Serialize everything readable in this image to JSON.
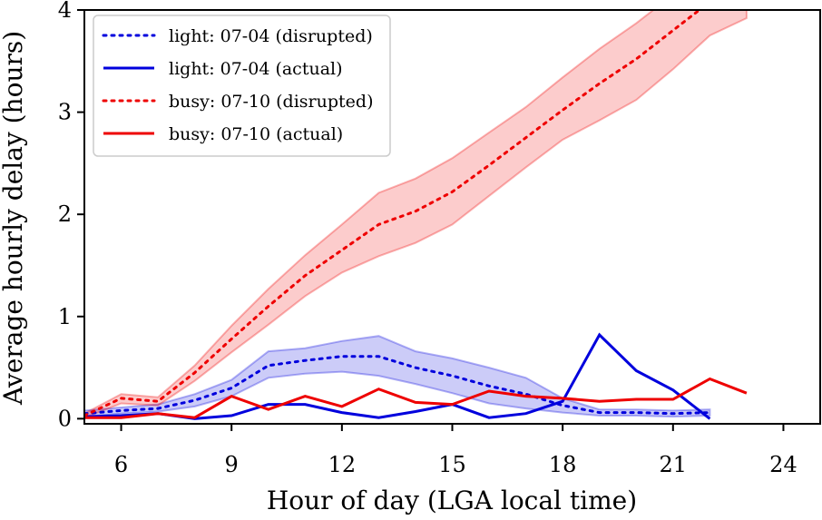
{
  "chart_data": {
    "type": "line",
    "xlabel": "Hour of day (LGA local time)",
    "ylabel": "Average hourly delay (hours)",
    "xlim": [
      5,
      25
    ],
    "ylim": [
      -0.05,
      4
    ],
    "xticks": [
      6,
      9,
      12,
      15,
      18,
      21,
      24
    ],
    "yticks": [
      0,
      1,
      2,
      3,
      4
    ],
    "grid": false,
    "legend_position": "top-left",
    "series": [
      {
        "name": "light: 07-04 (disrupted)",
        "color": "#0000dd",
        "style": "dotted",
        "x": [
          5,
          6,
          7,
          8,
          9,
          10,
          11,
          12,
          13,
          14,
          15,
          16,
          17,
          18,
          19,
          20,
          21,
          22
        ],
        "y": [
          0.05,
          0.08,
          0.1,
          0.18,
          0.3,
          0.52,
          0.57,
          0.61,
          0.61,
          0.5,
          0.42,
          0.32,
          0.24,
          0.13,
          0.06,
          0.06,
          0.05,
          0.06
        ],
        "band_low": [
          0.02,
          0.05,
          0.07,
          0.12,
          0.22,
          0.4,
          0.44,
          0.46,
          0.42,
          0.34,
          0.25,
          0.15,
          0.1,
          0.06,
          0.03,
          0.03,
          0.02,
          0.03
        ],
        "band_high": [
          0.08,
          0.11,
          0.14,
          0.24,
          0.38,
          0.66,
          0.69,
          0.76,
          0.81,
          0.66,
          0.59,
          0.5,
          0.4,
          0.2,
          0.09,
          0.09,
          0.08,
          0.09
        ]
      },
      {
        "name": "light: 07-04 (actual)",
        "color": "#0000dd",
        "style": "solid",
        "x": [
          5,
          6,
          7,
          8,
          9,
          10,
          11,
          12,
          13,
          14,
          15,
          16,
          17,
          18,
          19,
          20,
          21,
          22
        ],
        "y": [
          0.02,
          0.03,
          0.05,
          0.0,
          0.03,
          0.14,
          0.14,
          0.06,
          0.01,
          0.07,
          0.14,
          0.01,
          0.05,
          0.17,
          0.82,
          0.47,
          0.28,
          0.0
        ]
      },
      {
        "name": "busy: 07-10 (disrupted)",
        "color": "#ee0000",
        "style": "dotted",
        "x": [
          5,
          6,
          7,
          8,
          9,
          10,
          11,
          12,
          13,
          14,
          15,
          16,
          17,
          18,
          19,
          20,
          21,
          22,
          23
        ],
        "y": [
          0.03,
          0.2,
          0.17,
          0.45,
          0.78,
          1.1,
          1.4,
          1.65,
          1.9,
          2.03,
          2.22,
          2.48,
          2.75,
          3.02,
          3.28,
          3.52,
          3.8,
          4.08,
          4.4
        ],
        "band_low": [
          0.01,
          0.15,
          0.13,
          0.37,
          0.65,
          0.92,
          1.2,
          1.43,
          1.59,
          1.72,
          1.9,
          2.18,
          2.46,
          2.73,
          2.92,
          3.12,
          3.42,
          3.75,
          3.92
        ],
        "band_high": [
          0.05,
          0.24,
          0.21,
          0.52,
          0.91,
          1.27,
          1.6,
          1.9,
          2.21,
          2.35,
          2.55,
          2.8,
          3.05,
          3.34,
          3.62,
          3.87,
          4.15,
          4.45,
          4.85
        ]
      },
      {
        "name": "busy: 07-10 (actual)",
        "color": "#ee0000",
        "style": "solid",
        "x": [
          5,
          6,
          7,
          8,
          9,
          10,
          11,
          12,
          13,
          14,
          15,
          16,
          17,
          18,
          19,
          20,
          21,
          22,
          23
        ],
        "y": [
          0.01,
          0.01,
          0.05,
          0.01,
          0.22,
          0.09,
          0.22,
          0.12,
          0.29,
          0.16,
          0.14,
          0.27,
          0.22,
          0.2,
          0.17,
          0.19,
          0.19,
          0.39,
          0.25
        ]
      }
    ]
  }
}
